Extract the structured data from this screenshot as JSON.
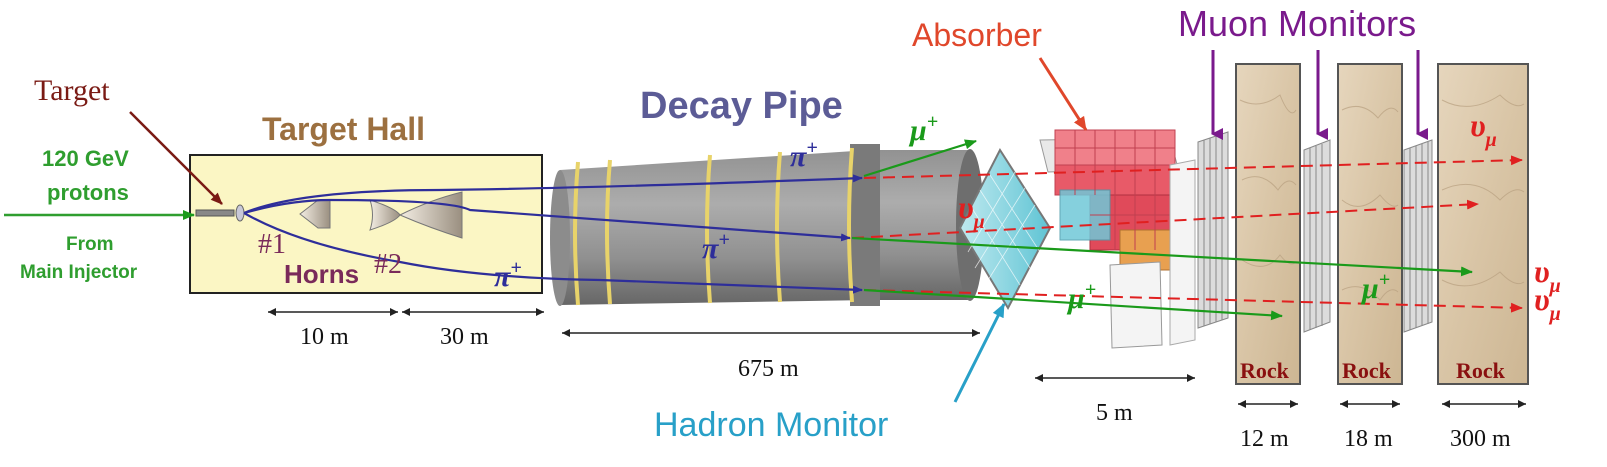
{
  "colors": {
    "proton": "#2f9e2f",
    "pion": "#2e2e9a",
    "muon": "#1a9a1a",
    "neutrino": "#e02020",
    "target_label": "#7a1a14",
    "target_hall": "#9c7040",
    "decay_pipe": "#5c5c96",
    "absorber": "#e0472b",
    "muon_monitors": "#7a1a8c",
    "hadron_monitor": "#28a0c8",
    "horns": "#7a2a5a",
    "rock_text": "#8a1010",
    "hall_fill": "#fbf6c4"
  },
  "labels": {
    "target": "Target",
    "target_hall": "Target Hall",
    "decay_pipe": "Decay Pipe",
    "absorber": "Absorber",
    "muon_monitors": "Muon Monitors",
    "hadron_monitor": "Hadron Monitor",
    "proton_energy": "120 GeV",
    "proton_word": "protons",
    "from_line1": "From",
    "from_line2": "Main Injector",
    "horn1": "#1",
    "horn2": "#2",
    "horns": "Horns",
    "rock": "Rock"
  },
  "particles": {
    "pi": "π",
    "mu": "μ",
    "nu": "υ",
    "plus": "+",
    "nu_sub": "μ"
  },
  "dimensions": {
    "d10": "10 m",
    "d30": "30 m",
    "d675": "675 m",
    "d5": "5 m",
    "d12": "12 m",
    "d18": "18 m",
    "d300": "300 m"
  }
}
